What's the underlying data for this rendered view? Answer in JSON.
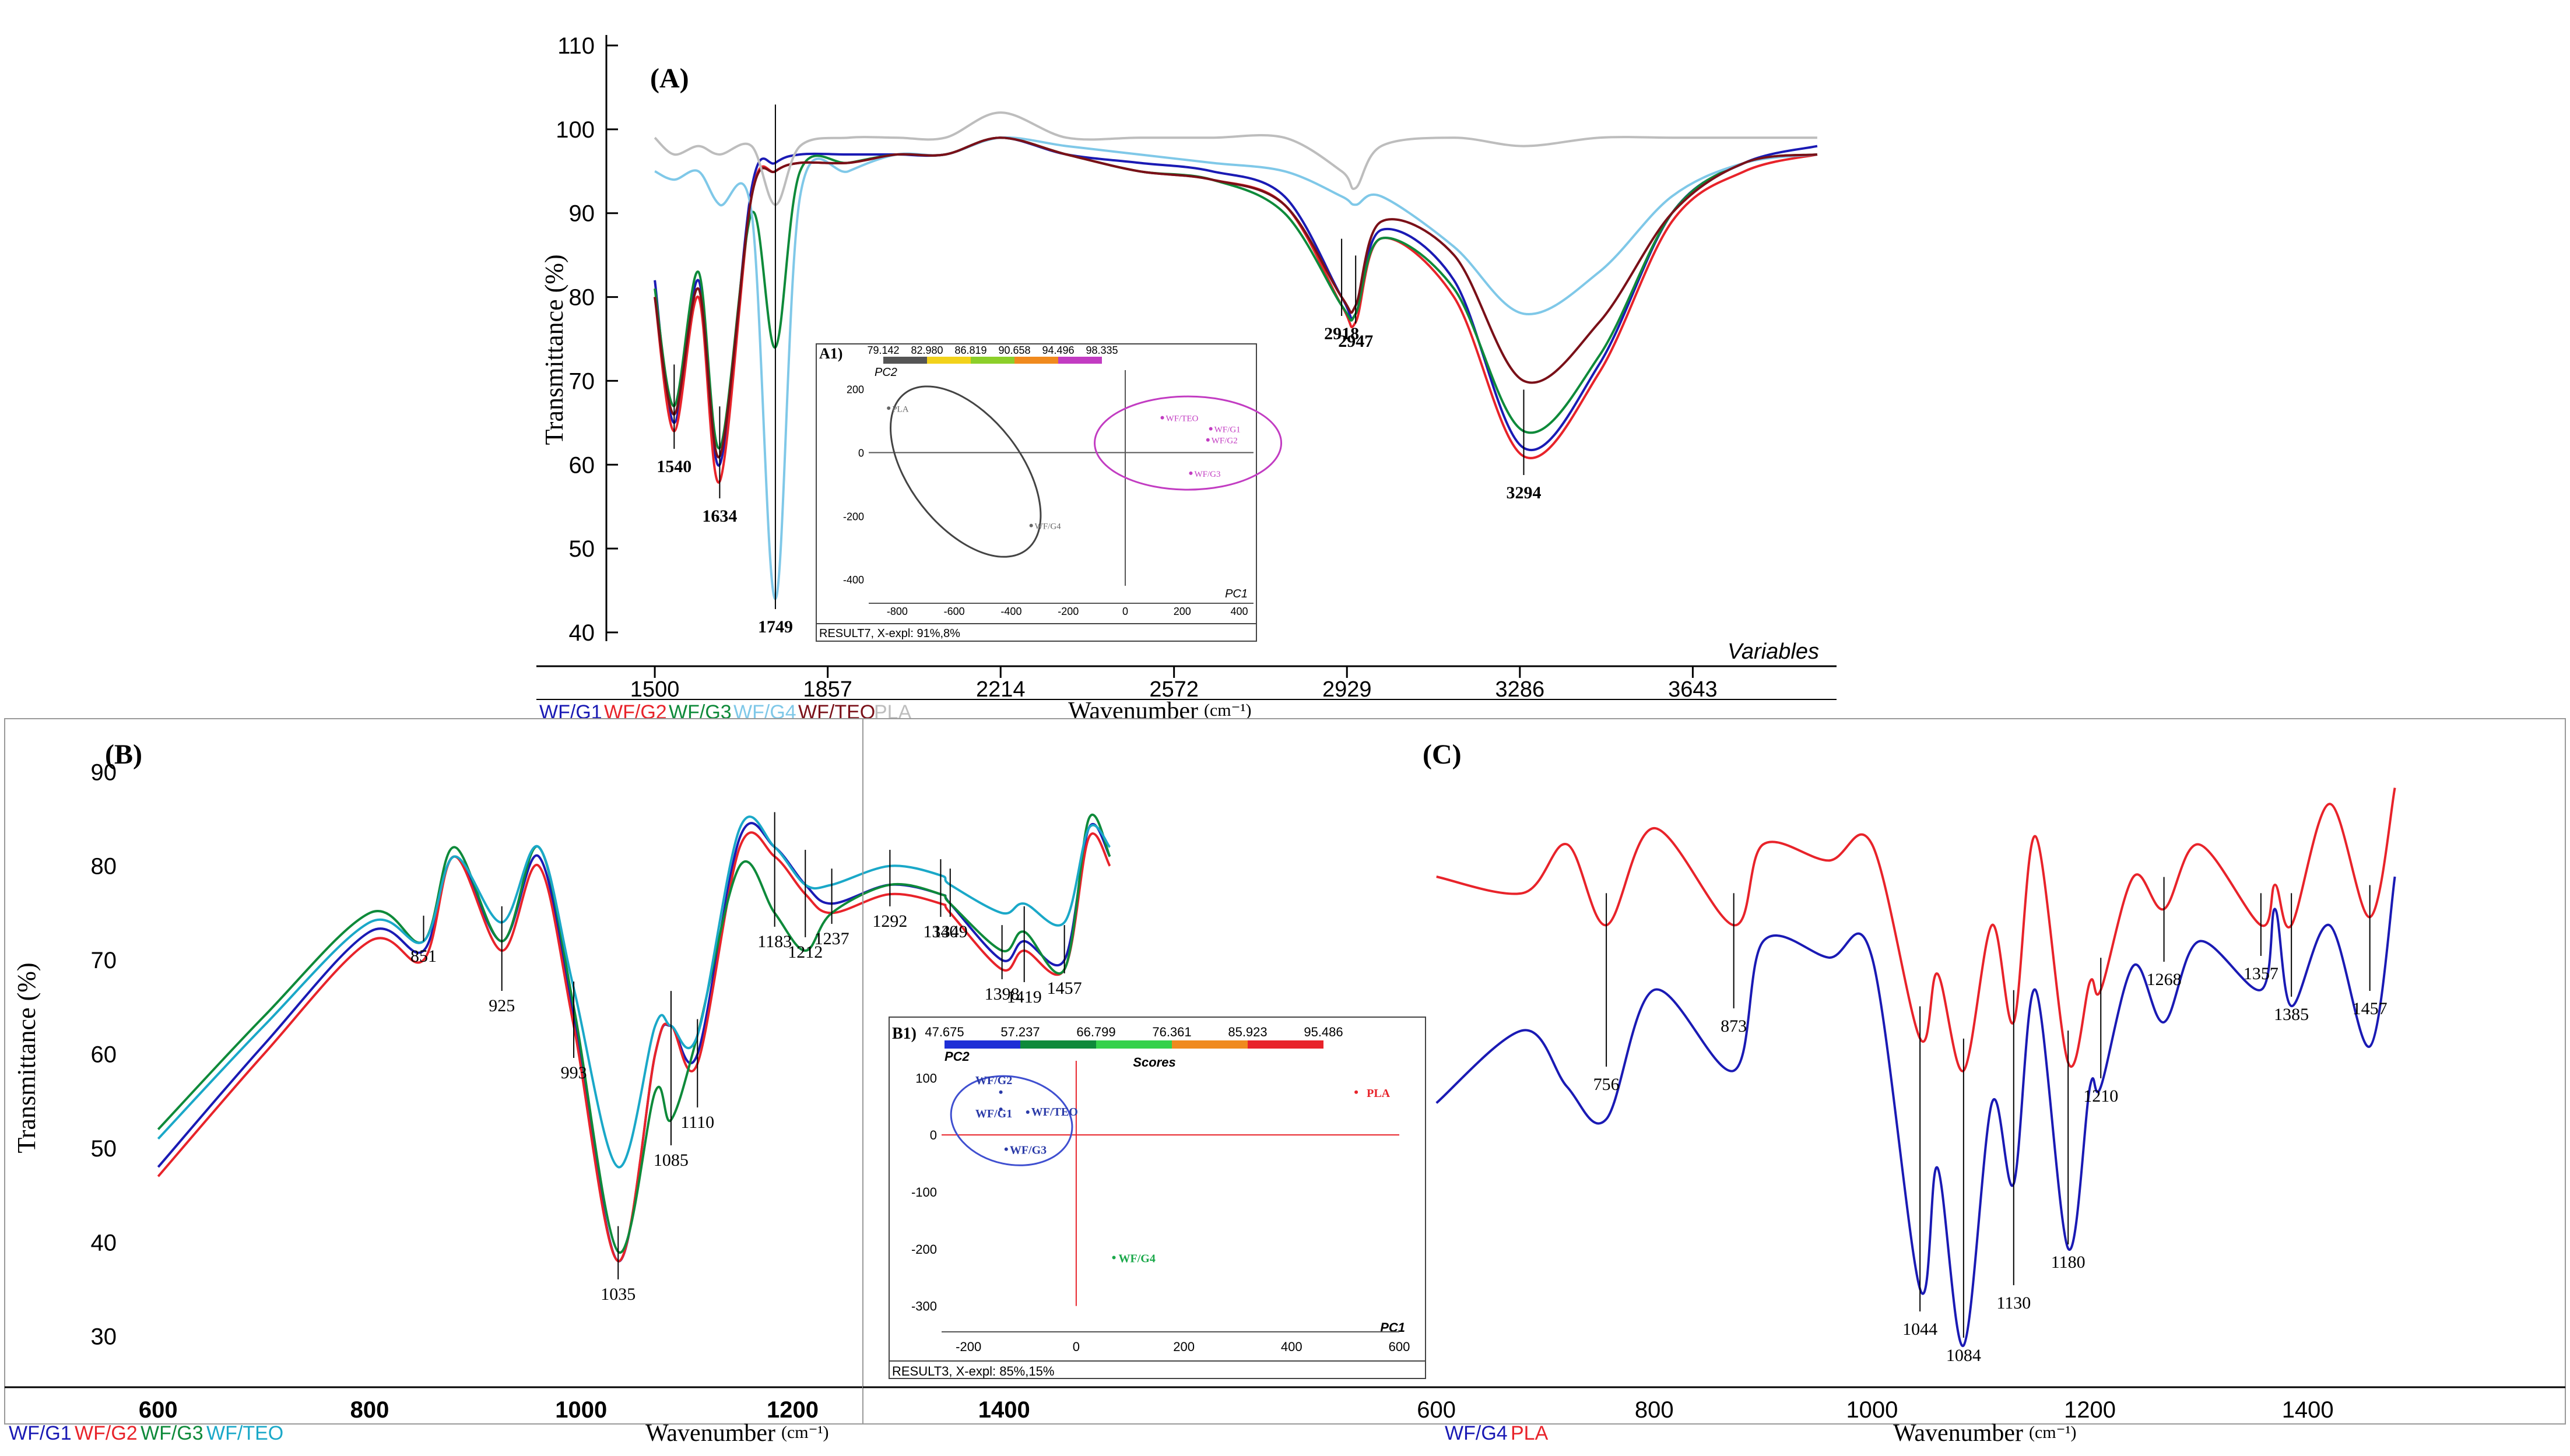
{
  "panels": {
    "A": {
      "letter": "(A)",
      "ylabel": "Transmittance (%)",
      "xlabel": "Wavenumber",
      "xunit": "(cm⁻¹)",
      "corner_label": "Variables",
      "y_ticks": [
        40,
        50,
        60,
        70,
        80,
        90,
        100,
        110
      ],
      "x_ticks": [
        "1500",
        "1857",
        "2214",
        "2572",
        "2929",
        "3286",
        "3643"
      ],
      "legend": [
        {
          "prefix": "WF/",
          "name": "G1",
          "color": "#1a1ab4"
        },
        {
          "prefix": "WF/",
          "name": "G2",
          "color": "#e8232a"
        },
        {
          "prefix": "WF/",
          "name": "G3",
          "color": "#0e8a3a"
        },
        {
          "prefix": "WF/",
          "name": "G4",
          "color": "#7fc8e8"
        },
        {
          "prefix": "WF/",
          "name": "TEO",
          "color": "#7a1018"
        },
        {
          "prefix": "",
          "name": "PLA",
          "color": "#bdbdbd"
        }
      ],
      "peak_labels": [
        "1540",
        "1634",
        "1749",
        "2918",
        "2947",
        "3294"
      ]
    },
    "A1": {
      "tag": "A1)",
      "scale_values": [
        "79.142",
        "82.980",
        "86.819",
        "90.658",
        "94.496",
        "98.335"
      ],
      "scale_colors": [
        "#555555",
        "#f2d21b",
        "#8ccf2a",
        "#f08a1e",
        "#c23cc2"
      ],
      "y_axis_name": "PC2",
      "x_axis_name": "PC1",
      "y_ticks": [
        "200",
        "0",
        "-200",
        "-400"
      ],
      "x_ticks": [
        "-800",
        "-600",
        "-400",
        "-200",
        "0",
        "200",
        "400"
      ],
      "points": [
        {
          "label": "PLA",
          "pc1": -830,
          "pc2": 140,
          "color": "#666666"
        },
        {
          "label": "WF/G4",
          "pc1": -330,
          "pc2": -230,
          "color": "#666666"
        },
        {
          "label": "WF/TEO",
          "pc1": 130,
          "pc2": 110,
          "color": "#c23cc2"
        },
        {
          "label": "WF/G1",
          "pc1": 300,
          "pc2": 75,
          "color": "#c23cc2"
        },
        {
          "label": "WF/G2",
          "pc1": 290,
          "pc2": 40,
          "color": "#c23cc2"
        },
        {
          "label": "WF/G3",
          "pc1": 230,
          "pc2": -65,
          "color": "#c23cc2"
        }
      ],
      "footer": "RESULT7, X-expl: 91%,8%"
    },
    "B": {
      "letter": "(B)",
      "ylabel": "Transmittance (%)",
      "xlabel": "Wavenumber",
      "xunit": "(cm⁻¹)",
      "y_ticks": [
        30,
        40,
        50,
        60,
        70,
        80,
        90
      ],
      "x_ticks": [
        "600",
        "800",
        "1000",
        "1200",
        "1400"
      ],
      "legend": [
        {
          "prefix": "WF/",
          "name": "G1",
          "color": "#1a1ab4"
        },
        {
          "prefix": "WF/",
          "name": "G2",
          "color": "#e8232a"
        },
        {
          "prefix": "WF/",
          "name": "G3",
          "color": "#0e8a3a"
        },
        {
          "prefix": "WF/",
          "name": "TEO",
          "color": "#1aa8c8"
        }
      ],
      "peak_labels": [
        "851",
        "925",
        "993",
        "1035",
        "1085",
        "1110",
        "1183",
        "1212",
        "1237",
        "1292",
        "1340",
        "1349",
        "1398",
        "1419",
        "1457"
      ]
    },
    "B1": {
      "tag": "B1)",
      "scale_values": [
        "47.675",
        "57.237",
        "66.799",
        "76.361",
        "85.923",
        "95.486"
      ],
      "scale_colors": [
        "#1e2fd6",
        "#0e8a3a",
        "#34d14a",
        "#f08a1e",
        "#e8232a"
      ],
      "caption": "Scores",
      "y_axis_name": "PC2",
      "x_axis_name": "PC1",
      "y_ticks": [
        "100",
        "0",
        "-100",
        "-200",
        "-300"
      ],
      "x_ticks": [
        "-200",
        "0",
        "200",
        "400",
        "600"
      ],
      "points": [
        {
          "label": "WF/G2",
          "pc1": -140,
          "pc2": 75,
          "color": "#2a3aa8"
        },
        {
          "label": "WF/G1",
          "pc1": -140,
          "pc2": 45,
          "color": "#2a3aa8"
        },
        {
          "label": "WF/TEO",
          "pc1": -90,
          "pc2": 40,
          "color": "#2a3aa8"
        },
        {
          "label": "WF/G3",
          "pc1": -130,
          "pc2": -25,
          "color": "#2a3aa8"
        },
        {
          "label": "PLA",
          "pc1": 520,
          "pc2": 75,
          "color": "#e8232a"
        },
        {
          "label": "WF/G4",
          "pc1": 70,
          "pc2": -215,
          "color": "#1aa84a"
        }
      ],
      "footer": "RESULT3, X-expl: 85%,15%"
    },
    "C": {
      "letter": "(C)",
      "xlabel": "Wavenumber",
      "xunit": "(cm⁻¹)",
      "x_ticks": [
        "600",
        "800",
        "1000",
        "1200",
        "1400"
      ],
      "legend": [
        {
          "prefix": "WF/",
          "name": "G4",
          "color": "#1a1ab4"
        },
        {
          "prefix": "",
          "name": "PLA",
          "color": "#e8232a"
        }
      ],
      "peak_labels": [
        "756",
        "873",
        "1044",
        "1084",
        "1130",
        "1180",
        "1210",
        "1268",
        "1357",
        "1385",
        "1457"
      ]
    }
  },
  "chart_data": [
    {
      "type": "line",
      "title": "(A)",
      "xlabel": "Wavenumber (cm⁻¹)",
      "ylabel": "Transmittance (%)",
      "xlim": [
        1400,
        4000
      ],
      "ylim": [
        40,
        110
      ],
      "x": [
        1500,
        1540,
        1590,
        1634,
        1700,
        1749,
        1800,
        1900,
        2000,
        2100,
        2214,
        2350,
        2500,
        2650,
        2800,
        2918,
        2947,
        3000,
        3150,
        3294,
        3450,
        3600,
        3750,
        3900
      ],
      "series": [
        {
          "name": "WF/G1",
          "values": [
            82,
            65,
            82,
            60,
            93,
            96,
            97,
            97,
            97,
            97,
            99,
            97,
            96,
            95,
            92,
            80,
            78,
            88,
            82,
            62,
            72,
            90,
            96,
            98
          ]
        },
        {
          "name": "WF/G2",
          "values": [
            80,
            64,
            80,
            58,
            92,
            95,
            96,
            96,
            97,
            97,
            99,
            97,
            95,
            94,
            91,
            79,
            77,
            87,
            80,
            61,
            71,
            89,
            95,
            97
          ]
        },
        {
          "name": "WF/G3",
          "values": [
            81,
            67,
            83,
            62,
            90,
            74,
            95,
            96,
            97,
            97,
            99,
            97,
            95,
            94,
            90,
            79,
            78,
            87,
            81,
            64,
            73,
            90,
            96,
            97
          ]
        },
        {
          "name": "WF/G4",
          "values": [
            95,
            94,
            95,
            91,
            90,
            44,
            92,
            95,
            97,
            97,
            99,
            98,
            97,
            96,
            95,
            92,
            91,
            92,
            86,
            78,
            83,
            92,
            96,
            97
          ]
        },
        {
          "name": "WF/TEO",
          "values": [
            80,
            66,
            81,
            61,
            92,
            95,
            96,
            96,
            97,
            97,
            99,
            97,
            95,
            94,
            91,
            80,
            79,
            89,
            85,
            70,
            77,
            90,
            96,
            97
          ]
        },
        {
          "name": "PLA",
          "values": [
            99,
            97,
            98,
            97,
            98,
            91,
            98,
            99,
            99,
            99,
            102,
            99,
            99,
            99,
            99,
            95,
            93,
            98,
            99,
            98,
            99,
            99,
            99,
            99
          ]
        }
      ]
    },
    {
      "type": "scatter",
      "title": "A1)",
      "xlabel": "PC1",
      "ylabel": "PC2",
      "xlim": [
        -900,
        450
      ],
      "ylim": [
        -420,
        260
      ],
      "series": [
        {
          "name": "PLA",
          "x": [
            -830
          ],
          "y": [
            140
          ]
        },
        {
          "name": "WF/G4",
          "x": [
            -330
          ],
          "y": [
            -230
          ]
        },
        {
          "name": "WF/TEO",
          "x": [
            130
          ],
          "y": [
            110
          ]
        },
        {
          "name": "WF/G1",
          "x": [
            300
          ],
          "y": [
            75
          ]
        },
        {
          "name": "WF/G2",
          "x": [
            290
          ],
          "y": [
            40
          ]
        },
        {
          "name": "WF/G3",
          "x": [
            230
          ],
          "y": [
            -65
          ]
        }
      ]
    },
    {
      "type": "line",
      "title": "(B)",
      "xlabel": "Wavenumber (cm⁻¹)",
      "ylabel": "Transmittance (%)",
      "xlim": [
        580,
        1600
      ],
      "ylim": [
        28,
        92
      ],
      "x": [
        600,
        700,
        800,
        851,
        880,
        925,
        960,
        993,
        1035,
        1070,
        1085,
        1110,
        1150,
        1183,
        1212,
        1237,
        1292,
        1340,
        1349,
        1398,
        1419,
        1457,
        1480,
        1500
      ],
      "series": [
        {
          "name": "WF/G1",
          "values": [
            48,
            61,
            73,
            71,
            81,
            72,
            81,
            64,
            38,
            60,
            63,
            60,
            83,
            82,
            78,
            76,
            78,
            77,
            76,
            70,
            72,
            70,
            84,
            81
          ]
        },
        {
          "name": "WF/G2",
          "values": [
            47,
            60,
            72,
            70,
            81,
            71,
            80,
            63,
            38,
            60,
            63,
            59,
            82,
            81,
            77,
            75,
            77,
            76,
            75,
            69,
            71,
            69,
            83,
            80
          ]
        },
        {
          "name": "WF/G3",
          "values": [
            52,
            64,
            75,
            72,
            82,
            72,
            82,
            65,
            39,
            56,
            53,
            62,
            80,
            75,
            71,
            75,
            78,
            77,
            76,
            71,
            73,
            69,
            85,
            81
          ]
        },
        {
          "name": "WF/TEO",
          "values": [
            51,
            63,
            74,
            72,
            81,
            74,
            82,
            67,
            48,
            63,
            63,
            62,
            84,
            82,
            78,
            78,
            80,
            79,
            78,
            75,
            76,
            74,
            84,
            82
          ]
        }
      ]
    },
    {
      "type": "scatter",
      "title": "B1)",
      "xlabel": "PC1",
      "ylabel": "PC2",
      "xlim": [
        -250,
        600
      ],
      "ylim": [
        -330,
        130
      ],
      "series": [
        {
          "name": "WF/G2",
          "x": [
            -140
          ],
          "y": [
            75
          ]
        },
        {
          "name": "WF/G1",
          "x": [
            -140
          ],
          "y": [
            45
          ]
        },
        {
          "name": "WF/TEO",
          "x": [
            -90
          ],
          "y": [
            40
          ]
        },
        {
          "name": "WF/G3",
          "x": [
            -130
          ],
          "y": [
            -25
          ]
        },
        {
          "name": "PLA",
          "x": [
            520
          ],
          "y": [
            75
          ]
        },
        {
          "name": "WF/G4",
          "x": [
            70
          ],
          "y": [
            -215
          ]
        }
      ]
    },
    {
      "type": "line",
      "title": "(C)",
      "xlabel": "Wavenumber (cm⁻¹)",
      "xlim": [
        590,
        1500
      ],
      "x": [
        600,
        680,
        720,
        756,
        800,
        873,
        900,
        960,
        1000,
        1044,
        1060,
        1084,
        1110,
        1130,
        1150,
        1180,
        1200,
        1210,
        1240,
        1268,
        1300,
        1357,
        1370,
        1385,
        1420,
        1457,
        1480
      ],
      "series": [
        {
          "name": "PLA",
          "values": [
            86,
            84,
            90,
            80,
            92,
            80,
            90,
            88,
            90,
            66,
            74,
            62,
            80,
            68,
            91,
            63,
            73,
            72,
            86,
            82,
            90,
            80,
            85,
            80,
            95,
            81,
            97
          ]
        },
        {
          "name": "WF/G4",
          "values": [
            58,
            67,
            60,
            56,
            72,
            62,
            78,
            76,
            76,
            35,
            50,
            28,
            58,
            48,
            72,
            40,
            60,
            60,
            75,
            68,
            78,
            72,
            82,
            70,
            80,
            65,
            86
          ]
        }
      ]
    }
  ]
}
